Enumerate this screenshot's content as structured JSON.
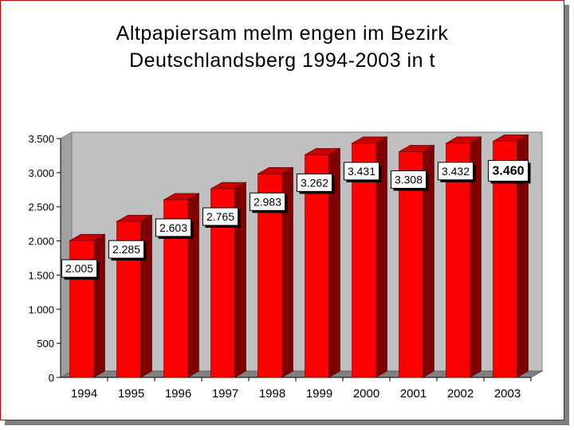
{
  "chart_data": {
    "type": "bar",
    "title_line1": "Altpapiersam melm engen im  Bezirk",
    "title_line2": "Deutschlandsberg 1994-2003 in t",
    "categories": [
      "1994",
      "1995",
      "1996",
      "1997",
      "1998",
      "1999",
      "2000",
      "2001",
      "2002",
      "2003"
    ],
    "values": [
      2005,
      2285,
      2603,
      2765,
      2983,
      3262,
      3431,
      3308,
      3432,
      3460
    ],
    "data_labels": [
      "2.005",
      "2.285",
      "2.603",
      "2.765",
      "2.983",
      "3.262",
      "3.431",
      "3.308",
      "3.432",
      "3.460"
    ],
    "y_ticks": [
      0,
      500,
      1000,
      1500,
      2000,
      2500,
      3000,
      3500
    ],
    "y_tick_labels": [
      "0",
      "500",
      "1.000",
      "1.500",
      "2.000",
      "2.500",
      "3.000",
      "3.500"
    ],
    "ylim": [
      0,
      3500
    ],
    "grid": false,
    "legend": "none",
    "style": "3d-column",
    "colors": {
      "bar_front": "#ff0000",
      "bar_top": "#cc0000",
      "bar_side": "#800000",
      "back_wall": "#c0c0c0",
      "floor": "#808080",
      "frame_border": "#c00000"
    },
    "highlight_last_label": true
  }
}
